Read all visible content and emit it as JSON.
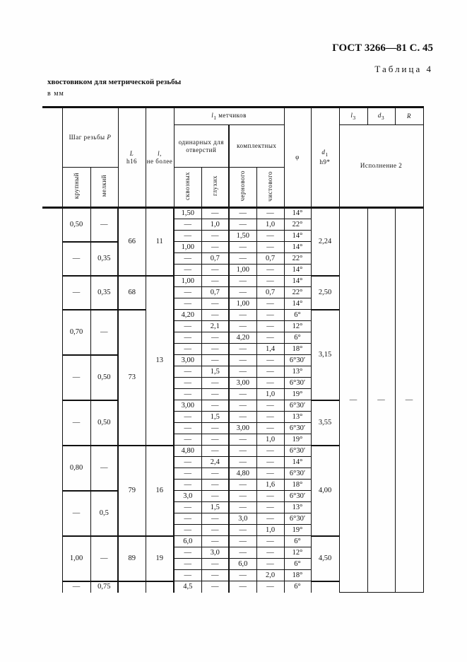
{
  "header": {
    "standard": "ГОСТ 3266—81 С. 45",
    "table_label": "Таблица 4",
    "caption": "хвостовиком для метрической резьбы",
    "unit": "в мм"
  },
  "columns": {
    "pitch": "Шаг резьбы",
    "pitch_sym": "P",
    "coarse": "крупный",
    "fine": "мелкий",
    "L_sym": "L",
    "L_tol": "h16",
    "l_sym": "l,",
    "l_text": "не более",
    "l1_sym": "l",
    "l1_sub": "1",
    "l1_text": "метчиков",
    "single": "одинарных для отверстий",
    "set": "комплектных",
    "through": "сквозных",
    "blind": "глухих",
    "rough": "чернового",
    "finish": "чистового",
    "phi": "φ",
    "d1_sym": "d",
    "d1_sub": "1",
    "d1_tol": "h9*",
    "l3_sym": "l",
    "l3_sub": "3",
    "d3_sym": "d",
    "d3_sub": "3",
    "R_sym": "R",
    "execution": "Исполнение 2"
  },
  "pitch_groups": [
    {
      "coarse": "0,50",
      "fine": "—",
      "rows": 3
    },
    {
      "coarse": "—",
      "fine": "0,35",
      "rows": 3
    },
    {
      "coarse": "—",
      "fine": "0,35",
      "rows": 3
    },
    {
      "coarse": "0,70",
      "fine": "—",
      "rows": 4
    },
    {
      "coarse": "—",
      "fine": "0,50",
      "rows": 4
    },
    {
      "coarse": "—",
      "fine": "0,50",
      "rows": 4
    },
    {
      "coarse": "0,80",
      "fine": "—",
      "rows": 4
    },
    {
      "coarse": "—",
      "fine": "0,5",
      "rows": 4
    },
    {
      "coarse": "1,00",
      "fine": "—",
      "rows": 4
    },
    {
      "coarse": "—",
      "fine": "0,75",
      "rows": 1
    }
  ],
  "L_groups": [
    {
      "v": "66",
      "rows": 6
    },
    {
      "v": "68",
      "rows": 3
    },
    {
      "v": "73",
      "rows": 12
    },
    {
      "v": "79",
      "rows": 8
    },
    {
      "v": "89",
      "rows": 4
    },
    {
      "v": "",
      "rows": 1
    }
  ],
  "l_groups": [
    {
      "v": "11",
      "rows": 6
    },
    {
      "v": "13",
      "rows": 15
    },
    {
      "v": "16",
      "rows": 8
    },
    {
      "v": "19",
      "rows": 4
    },
    {
      "v": "",
      "rows": 1
    }
  ],
  "d1_groups": [
    {
      "v": "2,24",
      "rows": 6
    },
    {
      "v": "2,50",
      "rows": 3
    },
    {
      "v": "3,15",
      "rows": 8
    },
    {
      "v": "3,55",
      "rows": 4
    },
    {
      "v": "4,00",
      "rows": 8
    },
    {
      "v": "4,50",
      "rows": 4
    },
    {
      "v": "",
      "rows": 1
    }
  ],
  "exec2": {
    "l3": "—",
    "d3": "—",
    "R": "—"
  },
  "rows": [
    [
      "1,50",
      "—",
      "—",
      "—",
      "14°"
    ],
    [
      "—",
      "1,0",
      "—",
      "1,0",
      "22°"
    ],
    [
      "—",
      "—",
      "1,50",
      "—",
      "14°"
    ],
    [
      "1,00",
      "—",
      "—",
      "—",
      "14°"
    ],
    [
      "—",
      "0,7",
      "—",
      "0,7",
      "22°"
    ],
    [
      "—",
      "—",
      "1,00",
      "—",
      "14°"
    ],
    [
      "1,00",
      "—",
      "—",
      "—",
      "14°"
    ],
    [
      "—",
      "0,7",
      "—",
      "0,7",
      "22°"
    ],
    [
      "—",
      "—",
      "1,00",
      "—",
      "14°"
    ],
    [
      "4,20",
      "—",
      "—",
      "—",
      "6°"
    ],
    [
      "—",
      "2,1",
      "—",
      "—",
      "12°"
    ],
    [
      "—",
      "—",
      "4,20",
      "—",
      "6°"
    ],
    [
      "—",
      "—",
      "—",
      "1,4",
      "18°"
    ],
    [
      "3,00",
      "—",
      "—",
      "—",
      "6°30′"
    ],
    [
      "—",
      "1,5",
      "—",
      "—",
      "13°"
    ],
    [
      "—",
      "—",
      "3,00",
      "—",
      "6°30′"
    ],
    [
      "—",
      "—",
      "—",
      "1,0",
      "19°"
    ],
    [
      "3,00",
      "—",
      "—",
      "—",
      "6°30′"
    ],
    [
      "—",
      "1,5",
      "—",
      "—",
      "13°"
    ],
    [
      "—",
      "—",
      "3,00",
      "—",
      "6°30′"
    ],
    [
      "—",
      "—",
      "—",
      "1,0",
      "19°"
    ],
    [
      "4,80",
      "—",
      "—",
      "—",
      "6°30′"
    ],
    [
      "—",
      "2,4",
      "—",
      "—",
      "14°"
    ],
    [
      "—",
      "—",
      "4,80",
      "—",
      "6°30′"
    ],
    [
      "—",
      "—",
      "—",
      "1,6",
      "18°"
    ],
    [
      "3,0",
      "—",
      "—",
      "—",
      "6°30′"
    ],
    [
      "—",
      "1,5",
      "—",
      "—",
      "13°"
    ],
    [
      "—",
      "—",
      "3,0",
      "—",
      "6°30′"
    ],
    [
      "—",
      "—",
      "—",
      "1,0",
      "19°"
    ],
    [
      "6,0",
      "—",
      "—",
      "—",
      "6°"
    ],
    [
      "—",
      "3,0",
      "—",
      "—",
      "12°"
    ],
    [
      "—",
      "—",
      "6,0",
      "—",
      "6°"
    ],
    [
      "—",
      "—",
      "—",
      "2,0",
      "18°"
    ],
    [
      "4,5",
      "—",
      "—",
      "—",
      "6°"
    ]
  ]
}
